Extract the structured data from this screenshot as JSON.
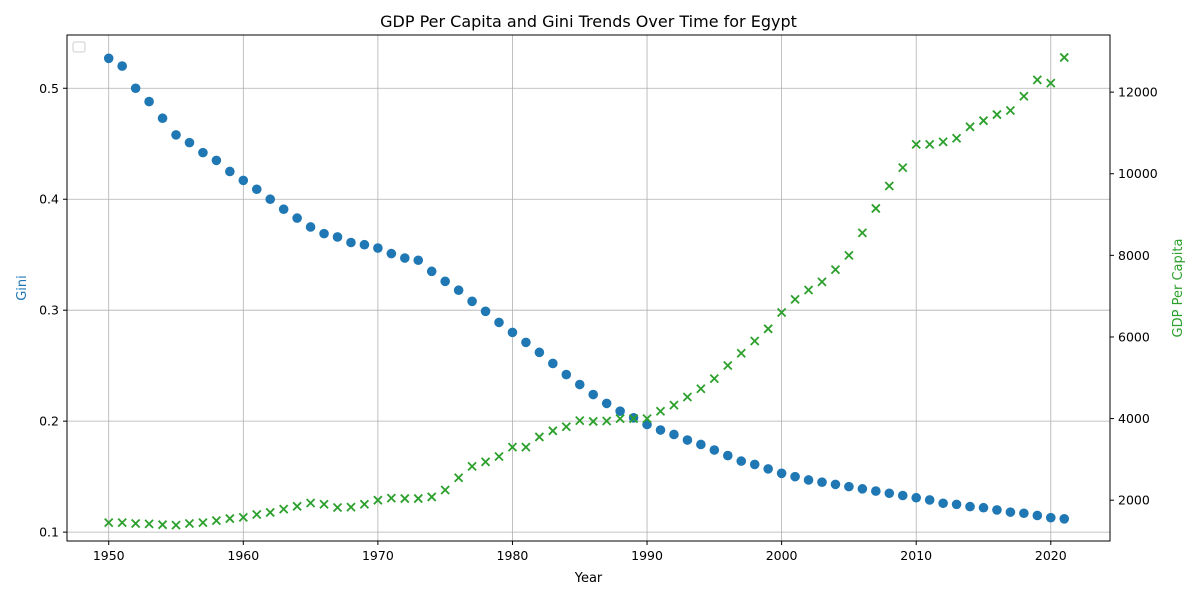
{
  "chart_data": {
    "type": "scatter",
    "title": "GDP Per Capita and Gini Trends Over Time for Egypt",
    "xlabel": "Year",
    "ylabel_left": "Gini",
    "ylabel_right": "GDP Per Capita",
    "xlim": [
      1946.9,
      2024.4
    ],
    "ylim_left": [
      0.092,
      0.548
    ],
    "ylim_right": [
      1000,
      13400
    ],
    "x_ticks": [
      1950,
      1960,
      1970,
      1980,
      1990,
      2000,
      2010,
      2020
    ],
    "y_ticks_left": [
      0.1,
      0.2,
      0.3,
      0.4,
      0.5
    ],
    "y_ticks_right": [
      2000,
      4000,
      6000,
      8000,
      10000,
      12000
    ],
    "grid": true,
    "legend": "top-left",
    "colors": {
      "gini": "#1f77b4",
      "gdp": "#2ca02c"
    },
    "x": [
      1950,
      1951,
      1952,
      1953,
      1954,
      1955,
      1956,
      1957,
      1958,
      1959,
      1960,
      1961,
      1962,
      1963,
      1964,
      1965,
      1966,
      1967,
      1968,
      1969,
      1970,
      1971,
      1972,
      1973,
      1974,
      1975,
      1976,
      1977,
      1978,
      1979,
      1980,
      1981,
      1982,
      1983,
      1984,
      1985,
      1986,
      1987,
      1988,
      1989,
      1990,
      1991,
      1992,
      1993,
      1994,
      1995,
      1996,
      1997,
      1998,
      1999,
      2000,
      2001,
      2002,
      2003,
      2004,
      2005,
      2006,
      2007,
      2008,
      2009,
      2010,
      2011,
      2012,
      2013,
      2014,
      2015,
      2016,
      2017,
      2018,
      2019,
      2020,
      2021
    ],
    "series": [
      {
        "key": "gini",
        "axis": "left",
        "marker": "circle",
        "values": [
          0.527,
          0.52,
          0.5,
          0.488,
          0.473,
          0.458,
          0.451,
          0.442,
          0.435,
          0.425,
          0.417,
          0.409,
          0.4,
          0.391,
          0.383,
          0.375,
          0.369,
          0.366,
          0.361,
          0.359,
          0.356,
          0.351,
          0.347,
          0.345,
          0.335,
          0.326,
          0.318,
          0.308,
          0.299,
          0.289,
          0.28,
          0.271,
          0.262,
          0.252,
          0.242,
          0.233,
          0.224,
          0.216,
          0.209,
          0.203,
          0.197,
          0.192,
          0.188,
          0.183,
          0.179,
          0.174,
          0.169,
          0.164,
          0.161,
          0.157,
          0.153,
          0.15,
          0.147,
          0.145,
          0.143,
          0.141,
          0.139,
          0.137,
          0.135,
          0.133,
          0.131,
          0.129,
          0.126,
          0.125,
          0.123,
          0.122,
          0.12,
          0.118,
          0.117,
          0.115,
          0.113,
          0.112
        ]
      },
      {
        "key": "gdp",
        "axis": "right",
        "marker": "x",
        "values": [
          1450,
          1450,
          1430,
          1420,
          1400,
          1390,
          1430,
          1450,
          1500,
          1550,
          1580,
          1650,
          1700,
          1780,
          1850,
          1930,
          1900,
          1820,
          1830,
          1900,
          2000,
          2050,
          2040,
          2040,
          2080,
          2250,
          2550,
          2830,
          2940,
          3070,
          3300,
          3300,
          3550,
          3700,
          3800,
          3950,
          3930,
          3940,
          4000,
          4000,
          4000,
          4180,
          4330,
          4530,
          4730,
          4980,
          5300,
          5600,
          5900,
          6200,
          6600,
          6920,
          7150,
          7350,
          7650,
          8000,
          8550,
          9150,
          9700,
          10150,
          10720,
          10720,
          10780,
          10870,
          11150,
          11300,
          11450,
          11550,
          11900,
          12300,
          12220,
          12850
        ]
      }
    ]
  }
}
